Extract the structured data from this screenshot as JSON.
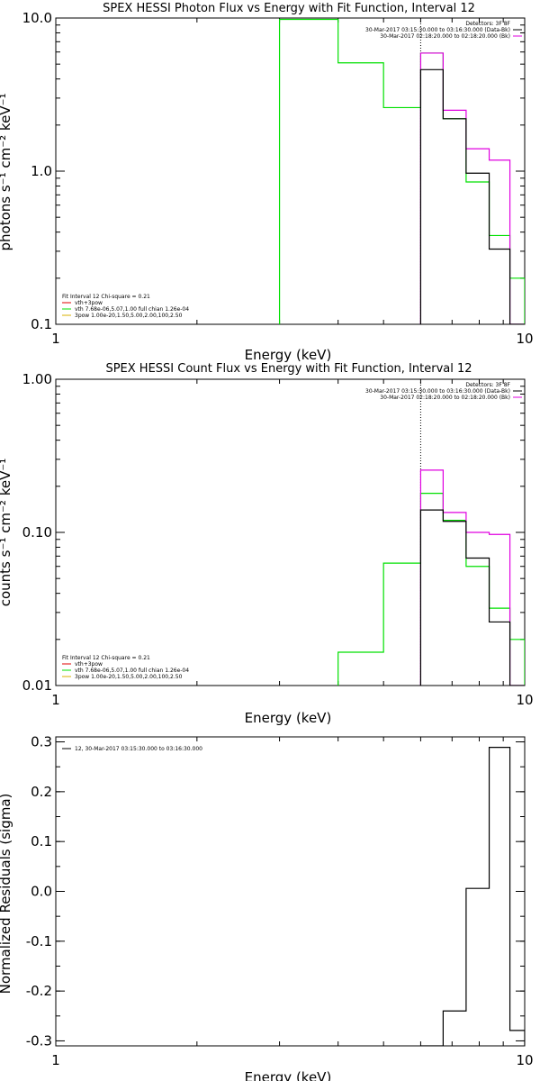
{
  "colors": {
    "black": "#000000",
    "green": "#00e000",
    "magenta": "#e000e0",
    "red": "#e00000",
    "yellow": "#d8b000",
    "purple": "#6000a0"
  },
  "chart_data": [
    {
      "type": "line",
      "step": true,
      "title": "SPEX HESSI Photon Flux vs Energy with Fit Function, Interval 12",
      "xlabel": "Energy (keV)",
      "ylabel": "photons s⁻¹ cm⁻² keV⁻¹",
      "xscale": "log",
      "yscale": "log",
      "xlim": [
        1,
        10
      ],
      "ylim": [
        0.1,
        10
      ],
      "x_ticks": [
        1,
        10
      ],
      "x_tick_labels": [
        "1",
        "10"
      ],
      "y_ticks": [
        0.1,
        1,
        10
      ],
      "y_tick_labels": [
        "0.1",
        "1.0",
        "10.0"
      ],
      "vline": 6,
      "info_lines": [
        "Detectors: 3F 8F",
        "30-Mar-2017 03:15:30.000 to 03:16:30.000 (Data-Bk)",
        "30-Mar-2017 02:18:20.000 to 02:18:20.000 (Bk)"
      ],
      "info_colors": [
        "#000000",
        "#000000",
        "#e000e0"
      ],
      "legend": [
        {
          "text": "Fit Interval 12    Chi-square = 0.21",
          "color": "#000000"
        },
        {
          "text": "vth+3pow",
          "color": "#e00000"
        },
        {
          "text": "vth 7.68e-06,5.07,1.00  full chian 1.26e-04",
          "color": "#00e000"
        },
        {
          "text": "3pow 1.00e-20,1.50,5.00,2.00,100,2.50",
          "color": "#d8b000"
        }
      ],
      "series": [
        {
          "color": "#00e000",
          "edges": [
            3,
            4,
            5,
            6,
            6.7,
            7.5,
            8.4,
            9.3,
            10
          ],
          "values": [
            9.8,
            5.1,
            2.6,
            5.9,
            2.2,
            0.85,
            0.38,
            0.2
          ]
        },
        {
          "color": "#e000e0",
          "edges": [
            6,
            6.7,
            7.5,
            8.4,
            9.3,
            10
          ],
          "values": [
            5.9,
            2.5,
            1.4,
            1.18,
            0.1
          ]
        },
        {
          "color": "#000000",
          "edges": [
            6,
            6.7,
            7.5,
            8.4,
            9.3,
            10
          ],
          "values": [
            4.6,
            2.2,
            0.97,
            0.31,
            0.1
          ]
        }
      ]
    },
    {
      "type": "line",
      "step": true,
      "title": "SPEX HESSI Count Flux vs Energy with Fit Function, Interval 12",
      "xlabel": "Energy (keV)",
      "ylabel": "counts s⁻¹ cm⁻² keV⁻¹",
      "xscale": "log",
      "yscale": "log",
      "xlim": [
        1,
        10
      ],
      "ylim": [
        0.01,
        1
      ],
      "x_ticks": [
        1,
        10
      ],
      "x_tick_labels": [
        "1",
        "10"
      ],
      "y_ticks": [
        0.01,
        0.1,
        1
      ],
      "y_tick_labels": [
        "0.01",
        "0.10",
        "1.00"
      ],
      "vline": 6,
      "info_lines": [
        "Detectors: 3F 8F",
        "30-Mar-2017 03:15:30.000 to 03:16:30.000 (Data-Bk)",
        "30-Mar-2017 02:18:20.000 to 02:18:20.000 (Bk)"
      ],
      "info_colors": [
        "#000000",
        "#000000",
        "#e000e0"
      ],
      "legend": [
        {
          "text": "Fit Interval 12    Chi-square = 0.21",
          "color": "#000000"
        },
        {
          "text": "vth+3pow",
          "color": "#e00000"
        },
        {
          "text": "vth 7.68e-06,5.07,1.00  full chian 1.26e-04",
          "color": "#00e000"
        },
        {
          "text": "3pow 1.00e-20,1.50,5.00,2.00,100,2.50",
          "color": "#d8b000"
        }
      ],
      "series": [
        {
          "color": "#00e000",
          "edges": [
            4,
            5,
            6,
            6.7,
            7.5,
            8.4,
            9.3,
            10
          ],
          "values": [
            0.0165,
            0.063,
            0.18,
            0.12,
            0.06,
            0.032,
            0.02
          ]
        },
        {
          "color": "#e000e0",
          "edges": [
            6,
            6.7,
            7.5,
            8.4,
            9.3,
            10
          ],
          "values": [
            0.255,
            0.135,
            0.1,
            0.097,
            0.01
          ]
        },
        {
          "color": "#000000",
          "edges": [
            6,
            6.7,
            7.5,
            8.4,
            9.3,
            10
          ],
          "values": [
            0.14,
            0.118,
            0.068,
            0.026,
            0.01
          ]
        }
      ]
    },
    {
      "type": "line",
      "step": true,
      "title": "",
      "xlabel": "Energy (keV)",
      "ylabel": "Normalized Residuals (sigma)",
      "xscale": "log",
      "yscale": "linear",
      "xlim": [
        1,
        10
      ],
      "ylim": [
        -0.31,
        0.31
      ],
      "x_ticks": [
        1,
        10
      ],
      "x_tick_labels": [
        "1",
        "10"
      ],
      "y_ticks": [
        -0.3,
        -0.2,
        -0.1,
        0.0,
        0.1,
        0.2,
        0.3
      ],
      "y_tick_labels": [
        "-0.3",
        "-0.2",
        "-0.1",
        "0.0",
        "0.1",
        "0.2",
        "0.3"
      ],
      "legend": [
        {
          "text": "12, 30-Mar-2017 03:15:30.000 to 03:16:30.000",
          "color": "#000000"
        }
      ],
      "series": [
        {
          "color": "#000000",
          "edges": [
            6,
            6.7,
            7.5,
            8.4,
            9.3,
            10
          ],
          "values": [
            -0.31,
            -0.24,
            0.006,
            0.289,
            -0.279
          ]
        }
      ]
    }
  ]
}
